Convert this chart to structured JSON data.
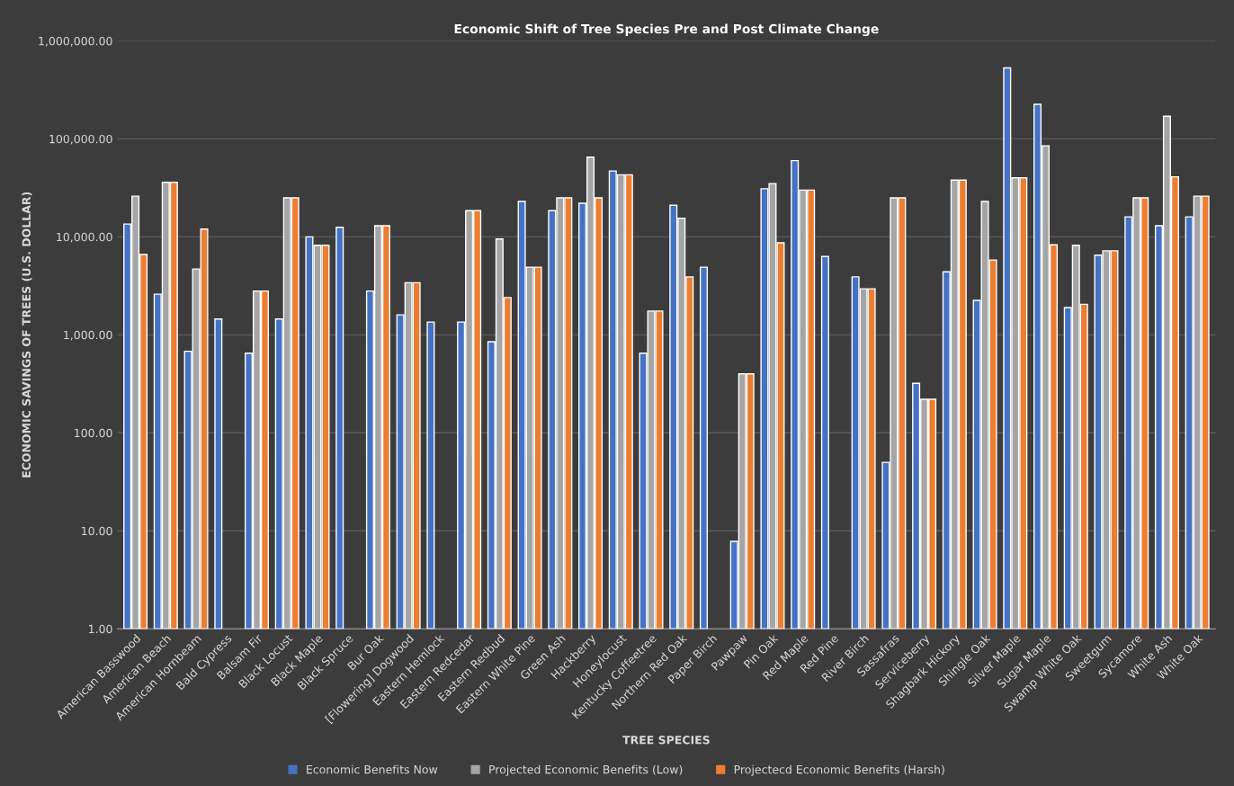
{
  "chart_data": {
    "type": "bar",
    "title": "Economic Shift of Tree Species Pre and Post Climate Change",
    "xlabel": "TREE SPECIES",
    "ylabel": "ECONOMIC SAVINGS OF TREES (U.S. DOLLAR)",
    "categories": [
      "American Basswood",
      "American Beach",
      "American Hornbeam",
      "Bald Cypress",
      "Balsam Fir",
      "Black Locust",
      "Black Maple",
      "Black Spruce",
      "Bur Oak",
      "[Flowering] Dogwood",
      "Eastern Hemlock",
      "Eastern Redcedar",
      "Eastern Redbud",
      "Eastern White Pine",
      "Green Ash",
      "Hackberry",
      "Honeylocust",
      "Kentucky Coffeetree",
      "Northern Red Oak",
      "Paper Birch",
      "Pawpaw",
      "Pin Oak",
      "Red Maple",
      "Red Pine",
      "River Birch",
      "Sassafras",
      "Serviceberry",
      "Shagbark Hickory",
      "Shingle Oak",
      "Silver Maple",
      "Sugar Maple",
      "Swamp White Oak",
      "Sweetgum",
      "Sycamore",
      "White Ash",
      "White Oak"
    ],
    "series": [
      {
        "name": "Economic Benefits Now",
        "color": "#4472c4",
        "values": [
          13500,
          2600,
          680,
          1450,
          650,
          1450,
          10000,
          12500,
          2800,
          1600,
          1350,
          1350,
          850,
          23000,
          18500,
          22000,
          47000,
          650,
          21000,
          4900,
          7.8,
          31000,
          60000,
          6300,
          3900,
          50,
          320,
          4400,
          2250,
          530000,
          225000,
          1900,
          6500,
          16000,
          13000,
          16000
        ]
      },
      {
        "name": "Projected Economic Benefits (Low)",
        "color": "#a5a5a5",
        "values": [
          26000,
          36000,
          4700,
          null,
          2800,
          25000,
          8200,
          null,
          13000,
          3400,
          null,
          18500,
          9500,
          4900,
          25000,
          65000,
          43000,
          1750,
          15500,
          null,
          400,
          35000,
          30000,
          null,
          2950,
          25000,
          220,
          38000,
          23000,
          40000,
          85000,
          8200,
          7200,
          25000,
          170000,
          26000
        ]
      },
      {
        "name": "Projectecd Economic Benefits (Harsh)",
        "color": "#ed7d31",
        "values": [
          6600,
          36000,
          12000,
          null,
          2800,
          25000,
          8200,
          null,
          13000,
          3400,
          null,
          18500,
          2400,
          4900,
          25000,
          25000,
          43000,
          1750,
          3900,
          null,
          400,
          8700,
          30000,
          null,
          2950,
          25000,
          220,
          38000,
          5800,
          40000,
          8300,
          2050,
          7200,
          25000,
          41000,
          26000
        ]
      }
    ],
    "log": "y",
    "ylim": [
      1,
      1000000
    ],
    "yticks": [
      {
        "value": 1,
        "label": "1.00"
      },
      {
        "value": 10,
        "label": "10.00"
      },
      {
        "value": 100,
        "label": "100.00"
      },
      {
        "value": 1000,
        "label": "1,000.00"
      },
      {
        "value": 10000,
        "label": "10,000.00"
      },
      {
        "value": 100000,
        "label": "100,000.00"
      },
      {
        "value": 1000000,
        "label": "1,000,000.00"
      }
    ],
    "grid": "y",
    "legend": "bottom"
  }
}
